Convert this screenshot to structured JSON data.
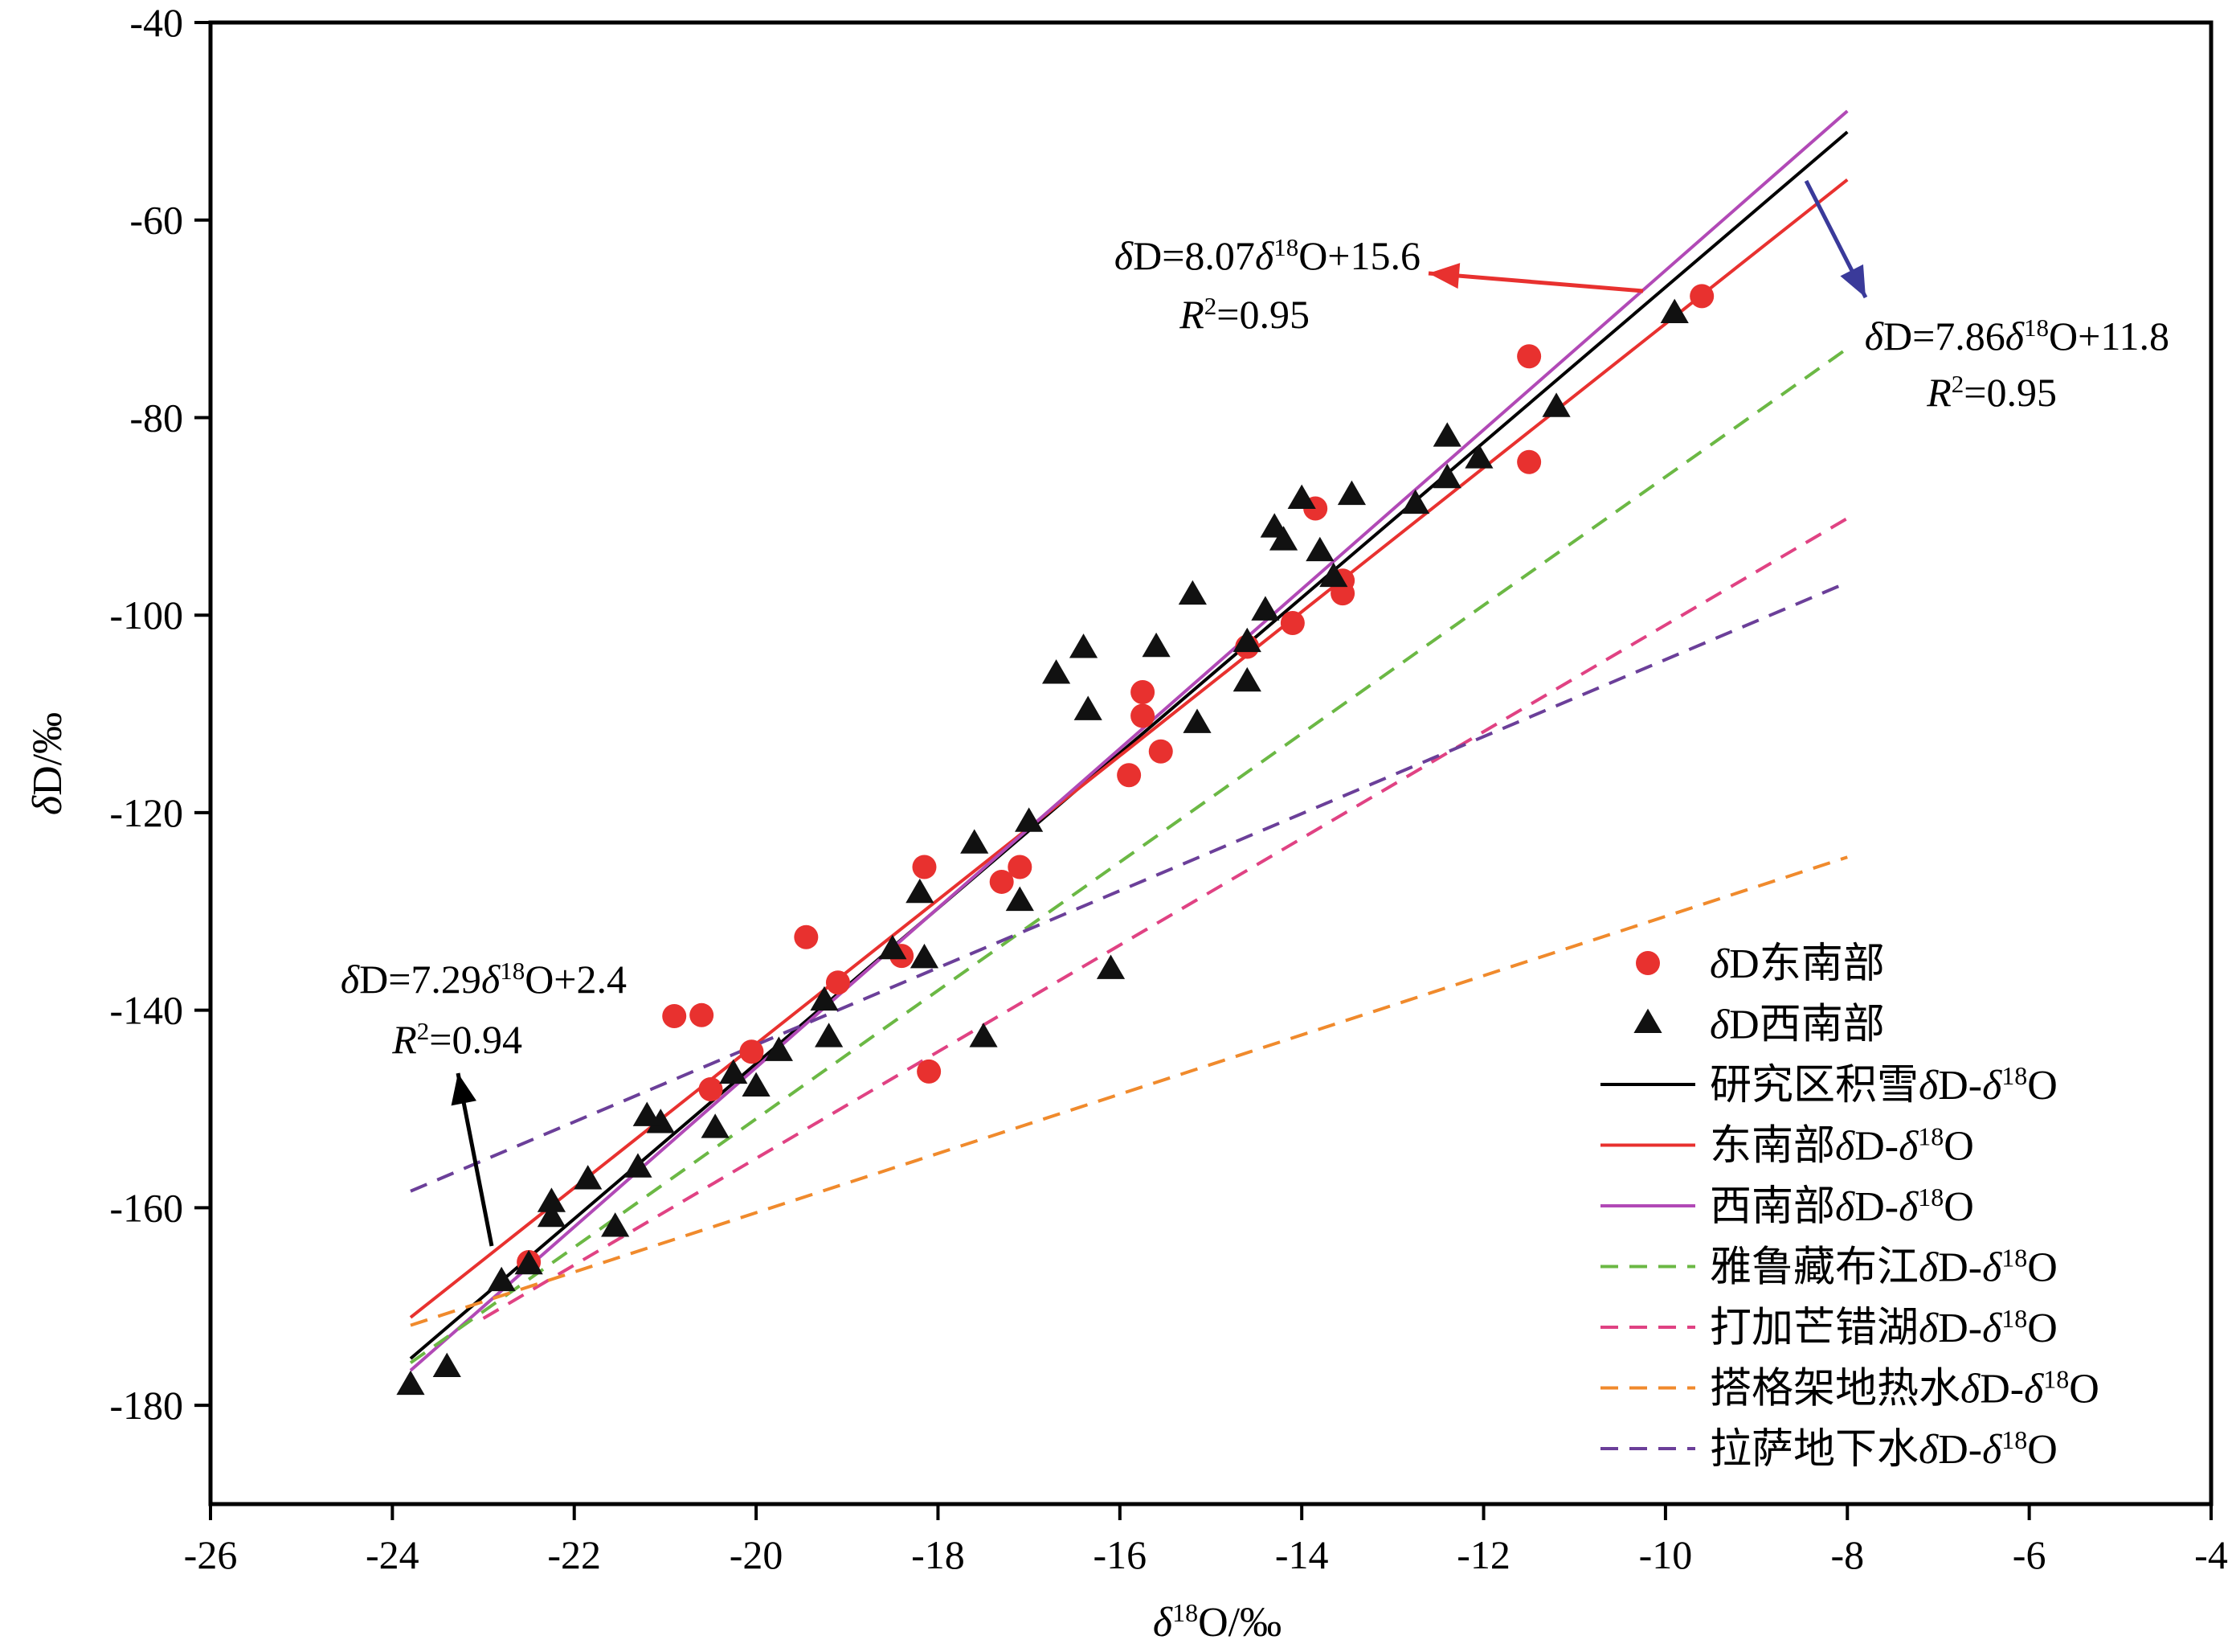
{
  "chart_data": {
    "type": "scatter",
    "title": "",
    "xlabel_parts": [
      "δ",
      "18",
      "O/‰"
    ],
    "ylabel_parts": [
      "δ",
      "D/‰"
    ],
    "xlim": [
      -26,
      -4
    ],
    "ylim": [
      -190,
      -40
    ],
    "x_ticks": [
      -26,
      -24,
      -22,
      -20,
      -18,
      -16,
      -14,
      -12,
      -10,
      -8,
      -6,
      -4
    ],
    "y_ticks": [
      -40,
      -60,
      -80,
      -100,
      -120,
      -140,
      -160,
      -180
    ],
    "x_tick_labels": [
      "-26",
      "-24",
      "-22",
      "-20",
      "-18",
      "-16",
      "-14",
      "-12",
      "-10",
      "-8",
      "-6",
      "-4"
    ],
    "y_tick_labels": [
      "-40",
      "-60",
      "-80",
      "-100",
      "-120",
      "-140",
      "-160",
      "-180"
    ],
    "grid": false,
    "legend_position": "bottom-right",
    "scatter_series": [
      {
        "name": "δD东南部",
        "marker": "circle",
        "color": "#e8312f",
        "points": [
          [
            -9.6,
            -67.7
          ],
          [
            -11.5,
            -73.8
          ],
          [
            -11.5,
            -84.5
          ],
          [
            -13.85,
            -89.2
          ],
          [
            -13.55,
            -96.5
          ],
          [
            -13.55,
            -97.8
          ],
          [
            -14.1,
            -100.8
          ],
          [
            -14.6,
            -103.2
          ],
          [
            -15.75,
            -107.8
          ],
          [
            -15.75,
            -110.2
          ],
          [
            -15.55,
            -113.8
          ],
          [
            -15.9,
            -116.2
          ],
          [
            -17.1,
            -125.5
          ],
          [
            -17.3,
            -127.0
          ],
          [
            -18.15,
            -125.5
          ],
          [
            -18.1,
            -146.2
          ],
          [
            -18.4,
            -134.5
          ],
          [
            -19.1,
            -137.2
          ],
          [
            -19.45,
            -132.6
          ],
          [
            -20.9,
            -140.6
          ],
          [
            -20.6,
            -140.5
          ],
          [
            -20.05,
            -144.2
          ],
          [
            -20.5,
            -148.0
          ],
          [
            -22.5,
            -165.5
          ]
        ]
      },
      {
        "name": "δD西南部",
        "marker": "triangle",
        "color": "#111111",
        "points": [
          [
            -9.9,
            -69.5
          ],
          [
            -11.2,
            -79.0
          ],
          [
            -12.4,
            -82.0
          ],
          [
            -12.05,
            -84.2
          ],
          [
            -12.4,
            -86.2
          ],
          [
            -12.75,
            -88.8
          ],
          [
            -13.45,
            -87.9
          ],
          [
            -14.0,
            -88.3
          ],
          [
            -14.3,
            -91.2
          ],
          [
            -14.2,
            -92.5
          ],
          [
            -13.8,
            -93.6
          ],
          [
            -13.65,
            -96.2
          ],
          [
            -14.4,
            -99.6
          ],
          [
            -14.6,
            -102.8
          ],
          [
            -14.6,
            -106.8
          ],
          [
            -15.2,
            -98.0
          ],
          [
            -15.15,
            -111.0
          ],
          [
            -15.6,
            -103.3
          ],
          [
            -16.4,
            -103.4
          ],
          [
            -16.35,
            -109.7
          ],
          [
            -16.7,
            -106.0
          ],
          [
            -16.1,
            -135.9
          ],
          [
            -17.0,
            -121.0
          ],
          [
            -17.6,
            -123.2
          ],
          [
            -17.1,
            -129.0
          ],
          [
            -17.5,
            -142.8
          ],
          [
            -18.2,
            -128.2
          ],
          [
            -18.15,
            -134.8
          ],
          [
            -18.5,
            -133.9
          ],
          [
            -19.25,
            -139.1
          ],
          [
            -19.2,
            -142.8
          ],
          [
            -19.75,
            -144.2
          ],
          [
            -20.0,
            -147.8
          ],
          [
            -20.25,
            -146.5
          ],
          [
            -20.45,
            -152.0
          ],
          [
            -21.05,
            -151.5
          ],
          [
            -21.2,
            -150.8
          ],
          [
            -21.3,
            -156.0
          ],
          [
            -21.55,
            -162.0
          ],
          [
            -21.85,
            -157.2
          ],
          [
            -22.25,
            -159.5
          ],
          [
            -22.25,
            -161.0
          ],
          [
            -22.5,
            -165.8
          ],
          [
            -22.8,
            -167.5
          ],
          [
            -23.4,
            -176.2
          ],
          [
            -23.8,
            -178.0
          ]
        ]
      }
    ],
    "line_series": [
      {
        "name": "研究区积雪δD-δ18O",
        "label_base": "研究区积雪",
        "color": "#000000",
        "dashed": false,
        "slope": 7.86,
        "intercept": 11.8,
        "x_range": [
          -23.8,
          -8.0
        ]
      },
      {
        "name": "东南部δD-δ18O",
        "label_base": "东南部",
        "color": "#e8312f",
        "dashed": false,
        "slope": 7.29,
        "intercept": 2.4,
        "x_range": [
          -23.8,
          -8.0
        ]
      },
      {
        "name": "西南部δD-δ18O",
        "label_base": "西南部",
        "color": "#b149b6",
        "dashed": false,
        "slope": 8.07,
        "intercept": 15.6,
        "x_range": [
          -23.8,
          -8.0
        ]
      },
      {
        "name": "雅鲁藏布江δD-δ18O",
        "label_base": "雅鲁藏布江",
        "color": "#6bb844",
        "dashed": true,
        "slope": 6.5,
        "intercept": -21.0,
        "x_range": [
          -23.8,
          -8.0
        ]
      },
      {
        "name": "打加芒错湖δD-δ18O",
        "label_base": "打加芒错湖",
        "color": "#e04283",
        "dashed": true,
        "slope": 5.4,
        "intercept": -47.0,
        "x_range": [
          -23.0,
          -8.0
        ]
      },
      {
        "name": "搭格架地热水δD-δ18O",
        "label_base": "搭格架地热水",
        "color": "#f08a2c",
        "dashed": true,
        "slope": 3.0,
        "intercept": -100.5,
        "x_range": [
          -23.8,
          -8.0
        ]
      },
      {
        "name": "拉萨地下水δD-δ18O",
        "label_base": "拉萨地下水",
        "color": "#6b3f99",
        "dashed": true,
        "slope": 3.9,
        "intercept": -65.5,
        "x_range": [
          -23.8,
          -8.0
        ]
      }
    ],
    "annotations": [
      {
        "equation_parts": [
          "δ",
          "D=8.07",
          "δ",
          "18",
          "O+15.6"
        ],
        "r2_parts": [
          "R",
          "2",
          "=0.95"
        ],
        "arrow_color": "#e8312f"
      },
      {
        "equation_parts": [
          "δ",
          "D=7.86",
          "δ",
          "18",
          "O+11.8"
        ],
        "r2_parts": [
          "R",
          "2",
          "=0.95"
        ],
        "arrow_color": "#3a3a9a"
      },
      {
        "equation_parts": [
          "δ",
          "D=7.29",
          "δ",
          "18",
          "O+2.4"
        ],
        "r2_parts": [
          "R",
          "2",
          "=0.94"
        ],
        "arrow_color": "#000000"
      }
    ]
  }
}
